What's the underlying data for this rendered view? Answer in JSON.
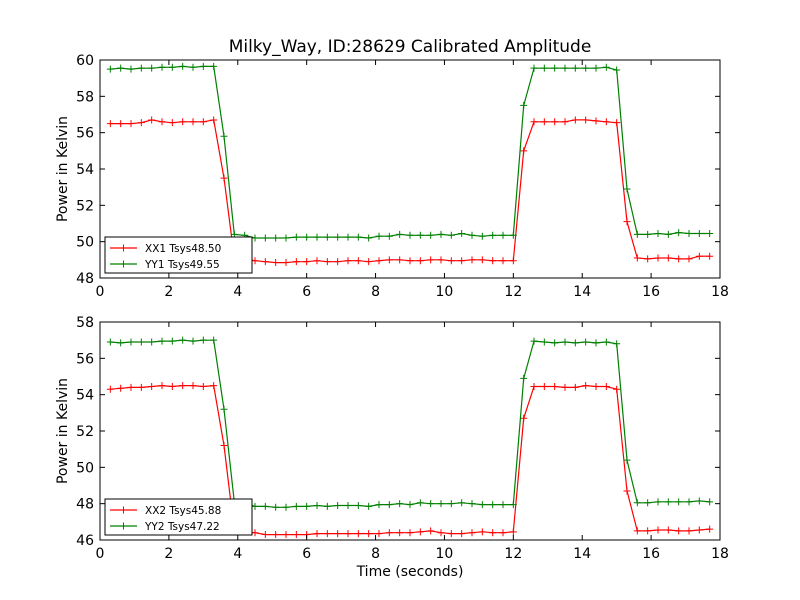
{
  "chart_data": [
    {
      "type": "line",
      "title": "Milky_Way, ID:28629 Calibrated Amplitude",
      "xlabel": "",
      "ylabel": "Power in Kelvin",
      "xlim": [
        0,
        18
      ],
      "ylim": [
        48,
        60
      ],
      "xticks": [
        "0",
        "2",
        "4",
        "6",
        "8",
        "10",
        "12",
        "14",
        "16",
        "18"
      ],
      "yticks": [
        "48",
        "50",
        "52",
        "54",
        "56",
        "58",
        "60"
      ],
      "legend_position": "lower-left",
      "grid": false,
      "x": [
        0.3,
        0.6,
        0.9,
        1.2,
        1.5,
        1.8,
        2.1,
        2.4,
        2.7,
        3.0,
        3.3,
        3.6,
        3.9,
        4.2,
        4.5,
        4.8,
        5.1,
        5.4,
        5.7,
        6.0,
        6.3,
        6.6,
        6.9,
        7.2,
        7.5,
        7.8,
        8.1,
        8.4,
        8.7,
        9.0,
        9.3,
        9.6,
        9.9,
        10.2,
        10.5,
        10.8,
        11.1,
        11.4,
        11.7,
        12.0,
        12.3,
        12.6,
        12.9,
        13.2,
        13.5,
        13.8,
        14.1,
        14.4,
        14.7,
        15.0,
        15.3,
        15.6,
        15.9,
        16.2,
        16.5,
        16.8,
        17.1,
        17.4,
        17.7
      ],
      "series": [
        {
          "name": "XX1 Tsys48.50",
          "color": "#ff0000",
          "values": [
            56.5,
            56.5,
            56.5,
            56.55,
            56.7,
            56.6,
            56.55,
            56.6,
            56.6,
            56.6,
            56.7,
            53.5,
            49.1,
            49.05,
            48.95,
            48.9,
            48.85,
            48.85,
            48.9,
            48.9,
            48.95,
            48.9,
            48.9,
            48.95,
            48.95,
            48.9,
            48.95,
            49.0,
            49.0,
            48.95,
            48.95,
            49.0,
            49.0,
            48.95,
            48.95,
            49.0,
            49.0,
            48.95,
            48.95,
            48.95,
            55.0,
            56.6,
            56.6,
            56.6,
            56.6,
            56.7,
            56.7,
            56.65,
            56.6,
            56.55,
            51.1,
            49.1,
            49.05,
            49.1,
            49.1,
            49.05,
            49.05,
            49.2,
            49.2
          ]
        },
        {
          "name": "YY1 Tsys49.55",
          "color": "#008000",
          "values": [
            59.5,
            59.55,
            59.5,
            59.55,
            59.55,
            59.6,
            59.6,
            59.65,
            59.6,
            59.65,
            59.65,
            55.8,
            50.4,
            50.35,
            50.2,
            50.2,
            50.2,
            50.2,
            50.25,
            50.25,
            50.25,
            50.25,
            50.25,
            50.25,
            50.25,
            50.2,
            50.3,
            50.3,
            50.4,
            50.35,
            50.35,
            50.35,
            50.4,
            50.35,
            50.45,
            50.35,
            50.3,
            50.35,
            50.35,
            50.35,
            57.5,
            59.55,
            59.55,
            59.55,
            59.55,
            59.55,
            59.55,
            59.55,
            59.6,
            59.45,
            52.9,
            50.4,
            50.4,
            50.45,
            50.4,
            50.5,
            50.45,
            50.45,
            50.45
          ]
        }
      ]
    },
    {
      "type": "line",
      "title": "",
      "xlabel": "Time (seconds)",
      "ylabel": "Power in Kelvin",
      "xlim": [
        0,
        18
      ],
      "ylim": [
        46,
        58
      ],
      "xticks": [
        "0",
        "2",
        "4",
        "6",
        "8",
        "10",
        "12",
        "14",
        "16",
        "18"
      ],
      "yticks": [
        "46",
        "48",
        "50",
        "52",
        "54",
        "56",
        "58"
      ],
      "legend_position": "lower-left",
      "grid": false,
      "x": [
        0.3,
        0.6,
        0.9,
        1.2,
        1.5,
        1.8,
        2.1,
        2.4,
        2.7,
        3.0,
        3.3,
        3.6,
        3.9,
        4.2,
        4.5,
        4.8,
        5.1,
        5.4,
        5.7,
        6.0,
        6.3,
        6.6,
        6.9,
        7.2,
        7.5,
        7.8,
        8.1,
        8.4,
        8.7,
        9.0,
        9.3,
        9.6,
        9.9,
        10.2,
        10.5,
        10.8,
        11.1,
        11.4,
        11.7,
        12.0,
        12.3,
        12.6,
        12.9,
        13.2,
        13.5,
        13.8,
        14.1,
        14.4,
        14.7,
        15.0,
        15.3,
        15.6,
        15.9,
        16.2,
        16.5,
        16.8,
        17.1,
        17.4,
        17.7
      ],
      "series": [
        {
          "name": "XX2 Tsys45.88",
          "color": "#ff0000",
          "values": [
            54.3,
            54.35,
            54.4,
            54.4,
            54.45,
            54.5,
            54.45,
            54.5,
            54.5,
            54.45,
            54.5,
            51.2,
            46.5,
            46.45,
            46.4,
            46.3,
            46.3,
            46.3,
            46.3,
            46.3,
            46.35,
            46.35,
            46.35,
            46.35,
            46.35,
            46.35,
            46.35,
            46.4,
            46.4,
            46.4,
            46.45,
            46.5,
            46.4,
            46.35,
            46.35,
            46.4,
            46.45,
            46.4,
            46.4,
            46.45,
            52.7,
            54.45,
            54.45,
            54.45,
            54.4,
            54.4,
            54.5,
            54.45,
            54.45,
            54.3,
            48.7,
            46.5,
            46.5,
            46.55,
            46.55,
            46.5,
            46.5,
            46.55,
            46.6
          ]
        },
        {
          "name": "YY2 Tsys47.22",
          "color": "#008000",
          "values": [
            56.9,
            56.85,
            56.9,
            56.9,
            56.9,
            56.95,
            56.95,
            57.0,
            56.95,
            57.0,
            57.0,
            53.2,
            48.1,
            48.05,
            47.85,
            47.85,
            47.8,
            47.8,
            47.85,
            47.85,
            47.9,
            47.85,
            47.9,
            47.9,
            47.9,
            47.85,
            47.95,
            47.95,
            48.0,
            47.95,
            48.05,
            48.0,
            48.0,
            48.0,
            48.05,
            48.0,
            47.95,
            47.95,
            47.95,
            47.95,
            54.9,
            56.95,
            56.9,
            56.85,
            56.9,
            56.85,
            56.9,
            56.85,
            56.9,
            56.8,
            50.4,
            48.05,
            48.05,
            48.1,
            48.1,
            48.1,
            48.1,
            48.15,
            48.1
          ]
        }
      ]
    }
  ]
}
